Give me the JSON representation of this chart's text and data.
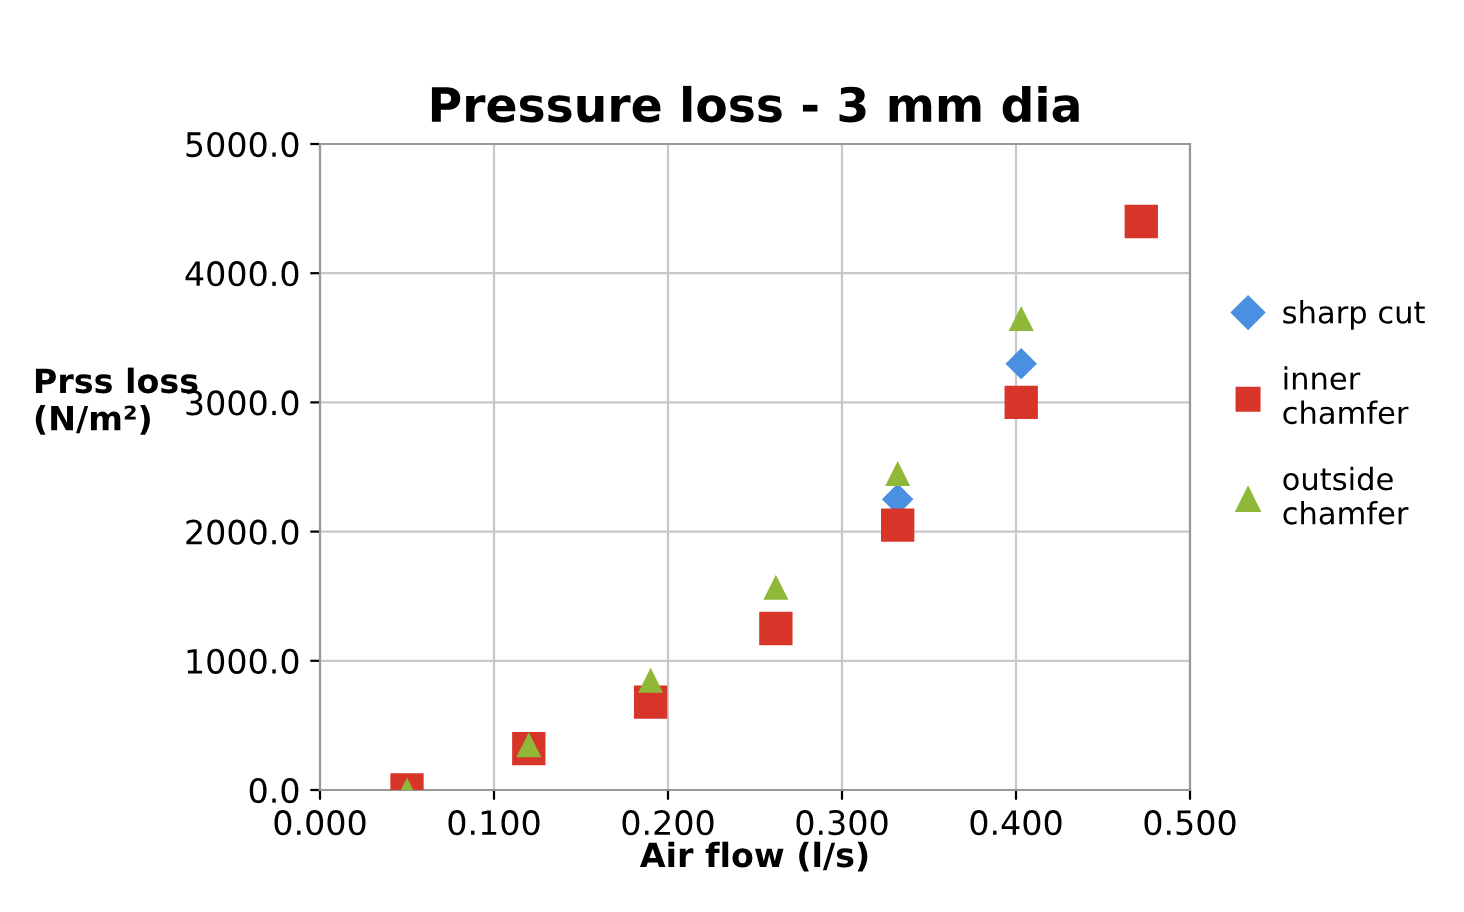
{
  "chart_data": {
    "type": "scatter",
    "title": "Pressure loss - 3 mm dia",
    "xlabel": "Air flow (l/s)",
    "ylabel": "Prss loss\n(N/m²)",
    "x": [
      0.05,
      0.12,
      0.19,
      0.262,
      0.332,
      0.403,
      0.472
    ],
    "series": [
      {
        "name": "sharp cut",
        "color": "#4a8fe0",
        "marker": "diamond",
        "values": [
          null,
          null,
          null,
          null,
          2250,
          3300,
          null
        ]
      },
      {
        "name": "inner\nchamfer",
        "color": "#d8352a",
        "marker": "square",
        "values": [
          0,
          320,
          680,
          1250,
          2050,
          3000,
          4400
        ]
      },
      {
        "name": "outside\nchamfer",
        "color": "#8fb838",
        "marker": "triangle",
        "values": [
          0,
          350,
          850,
          1570,
          2450,
          3650,
          null
        ]
      }
    ],
    "xlim": [
      0,
      0.5
    ],
    "ylim": [
      0,
      5000
    ],
    "xticks": [
      {
        "value": 0,
        "label": "0.000"
      },
      {
        "value": 0.1,
        "label": "0.100"
      },
      {
        "value": 0.2,
        "label": "0.200"
      },
      {
        "value": 0.3,
        "label": "0.300"
      },
      {
        "value": 0.4,
        "label": "0.400"
      },
      {
        "value": 0.5,
        "label": "0.500"
      }
    ],
    "yticks": [
      {
        "value": 0,
        "label": "0.0"
      },
      {
        "value": 1000,
        "label": "1000.0"
      },
      {
        "value": 2000,
        "label": "2000.0"
      },
      {
        "value": 3000,
        "label": "3000.0"
      },
      {
        "value": 4000,
        "label": "4000.0"
      },
      {
        "value": 5000,
        "label": "5000.0"
      }
    ],
    "grid": true,
    "legend": "right"
  }
}
